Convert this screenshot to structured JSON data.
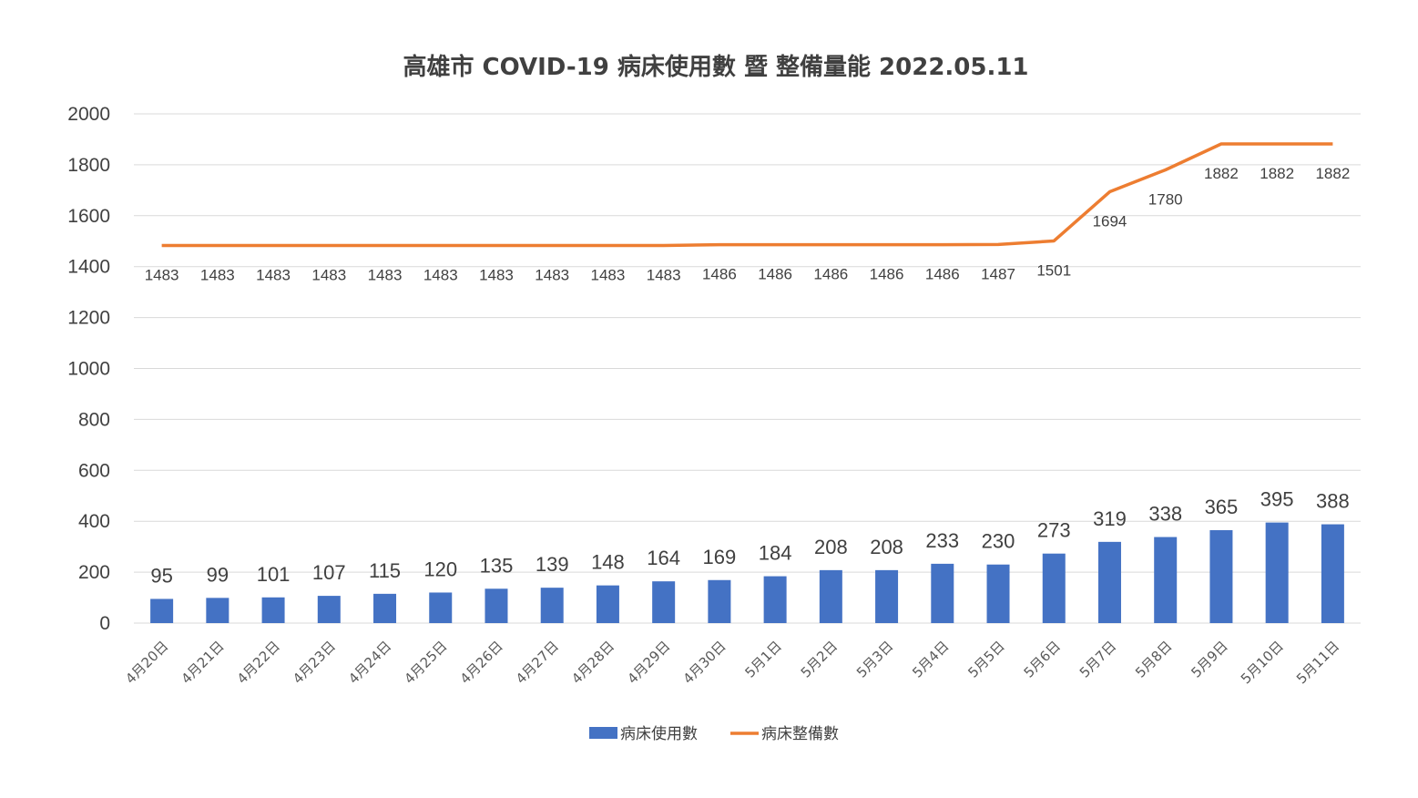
{
  "chart_data": {
    "type": "bar",
    "title": "高雄市 COVID-19 病床使用數 暨 整備量能 2022.05.11",
    "xlabel": "",
    "ylabel": "",
    "ylim": [
      0,
      2000
    ],
    "yticks": [
      0,
      200,
      400,
      600,
      800,
      1000,
      1200,
      1400,
      1600,
      1800,
      2000
    ],
    "grid": true,
    "legend_position": "bottom",
    "categories": [
      "4月20日",
      "4月21日",
      "4月22日",
      "4月23日",
      "4月24日",
      "4月25日",
      "4月26日",
      "4月27日",
      "4月28日",
      "4月29日",
      "4月30日",
      "5月1日",
      "5月2日",
      "5月3日",
      "5月4日",
      "5月5日",
      "5月6日",
      "5月7日",
      "5月8日",
      "5月9日",
      "5月10日",
      "5月11日"
    ],
    "series": [
      {
        "name": "病床使用數",
        "type": "bar",
        "color": "#4472c4",
        "values": [
          95,
          99,
          101,
          107,
          115,
          120,
          135,
          139,
          148,
          164,
          169,
          184,
          208,
          208,
          233,
          230,
          273,
          319,
          338,
          365,
          395,
          388
        ]
      },
      {
        "name": "病床整備數",
        "type": "line",
        "color": "#ed7d31",
        "values": [
          1483,
          1483,
          1483,
          1483,
          1483,
          1483,
          1483,
          1483,
          1483,
          1483,
          1486,
          1486,
          1486,
          1486,
          1486,
          1487,
          1501,
          1694,
          1780,
          1882,
          1882,
          1882
        ]
      }
    ]
  }
}
